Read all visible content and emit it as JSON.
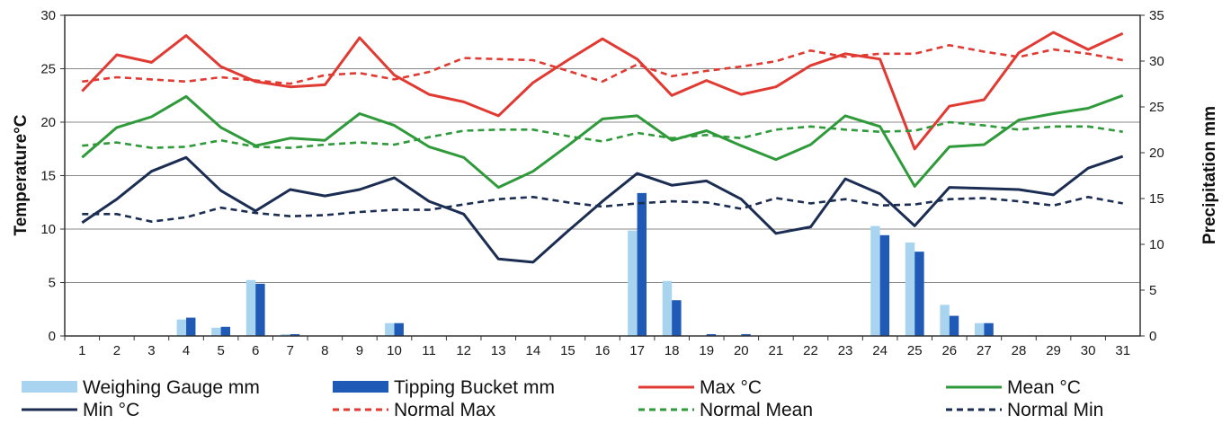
{
  "chart_data": {
    "type": "bar+line",
    "title": "",
    "xlabel": "",
    "ylabel_left": "Temperature°C",
    "ylabel_right": "Precipitation mm",
    "x": [
      1,
      2,
      3,
      4,
      5,
      6,
      7,
      8,
      9,
      10,
      11,
      12,
      13,
      14,
      15,
      16,
      17,
      18,
      19,
      20,
      21,
      22,
      23,
      24,
      25,
      26,
      27,
      28,
      29,
      30,
      31
    ],
    "ylim_left": [
      0,
      30
    ],
    "yticks_left": [
      0,
      5,
      10,
      15,
      20,
      25,
      30
    ],
    "ylim_right": [
      0,
      35
    ],
    "yticks_right": [
      0,
      5,
      10,
      15,
      20,
      25,
      30,
      35
    ],
    "grid": true,
    "legend_position": "bottom",
    "bar_series": [
      {
        "name": "Weighing Gauge mm",
        "axis": "right",
        "color": "#a9d4ef",
        "values": [
          0,
          0,
          0,
          1.8,
          0.9,
          6.1,
          0.2,
          0,
          0,
          1.4,
          0,
          0,
          0,
          0,
          0,
          0,
          11.5,
          6.0,
          0,
          0,
          0,
          0,
          0,
          12.0,
          10.2,
          3.4,
          1.4,
          0,
          0,
          0,
          0
        ]
      },
      {
        "name": "Tipping Bucket mm",
        "axis": "right",
        "color": "#1f5bb6",
        "values": [
          0,
          0,
          0,
          2.0,
          1.0,
          5.7,
          0.2,
          0,
          0,
          1.4,
          0,
          0,
          0,
          0,
          0,
          0,
          15.6,
          3.9,
          0.2,
          0.2,
          0,
          0,
          0,
          11.0,
          9.2,
          2.2,
          1.4,
          0,
          0,
          0,
          0
        ]
      }
    ],
    "line_series": [
      {
        "name": "Max °C",
        "axis": "left",
        "color": "#e03a32",
        "dash": false,
        "values": [
          22.9,
          26.3,
          25.6,
          28.1,
          25.2,
          23.8,
          23.3,
          23.5,
          27.9,
          24.4,
          22.6,
          21.9,
          20.6,
          23.7,
          25.8,
          27.8,
          25.9,
          22.5,
          23.9,
          22.6,
          23.3,
          25.3,
          26.4,
          25.9,
          17.5,
          21.5,
          22.1,
          26.5,
          28.4,
          26.8,
          28.3
        ]
      },
      {
        "name": "Mean °C",
        "axis": "left",
        "color": "#2e9a3a",
        "dash": false,
        "values": [
          16.7,
          19.5,
          20.5,
          22.4,
          19.5,
          17.8,
          18.5,
          18.3,
          20.8,
          19.7,
          17.7,
          16.7,
          13.9,
          15.4,
          17.8,
          20.3,
          20.6,
          18.3,
          19.2,
          17.8,
          16.5,
          17.9,
          20.6,
          19.6,
          14.0,
          17.7,
          17.9,
          20.2,
          20.8,
          21.3,
          22.5
        ]
      },
      {
        "name": "Min °C",
        "axis": "left",
        "color": "#1b2d52",
        "dash": false,
        "values": [
          10.6,
          12.8,
          15.4,
          16.7,
          13.6,
          11.7,
          13.7,
          13.1,
          13.7,
          14.8,
          12.6,
          11.4,
          7.2,
          6.9,
          9.8,
          12.6,
          15.2,
          14.1,
          14.5,
          12.8,
          9.6,
          10.2,
          14.7,
          13.3,
          10.3,
          13.9,
          13.8,
          13.7,
          13.2,
          15.7,
          16.8
        ]
      },
      {
        "name": "Normal Max",
        "axis": "left",
        "color": "#e03a32",
        "dash": true,
        "values": [
          23.8,
          24.2,
          24.0,
          23.8,
          24.2,
          23.9,
          23.6,
          24.4,
          24.6,
          24.0,
          24.7,
          26.0,
          25.9,
          25.8,
          24.8,
          23.8,
          25.4,
          24.3,
          24.8,
          25.2,
          25.7,
          26.7,
          26.1,
          26.4,
          26.4,
          27.2,
          26.6,
          26.1,
          26.8,
          26.4,
          25.8
        ]
      },
      {
        "name": "Normal Mean",
        "axis": "left",
        "color": "#2e9a3a",
        "dash": true,
        "values": [
          17.8,
          18.1,
          17.6,
          17.7,
          18.3,
          17.7,
          17.6,
          17.9,
          18.1,
          17.9,
          18.6,
          19.2,
          19.3,
          19.3,
          18.7,
          18.2,
          19.0,
          18.5,
          18.8,
          18.5,
          19.3,
          19.6,
          19.3,
          19.1,
          19.2,
          20.0,
          19.7,
          19.3,
          19.6,
          19.6,
          19.1
        ]
      },
      {
        "name": "Normal Min",
        "axis": "left",
        "color": "#1b2d52",
        "dash": true,
        "values": [
          11.4,
          11.4,
          10.7,
          11.1,
          12.0,
          11.5,
          11.2,
          11.3,
          11.6,
          11.8,
          11.8,
          12.3,
          12.8,
          13.0,
          12.5,
          12.1,
          12.4,
          12.6,
          12.5,
          11.9,
          12.9,
          12.4,
          12.8,
          12.2,
          12.3,
          12.8,
          12.9,
          12.6,
          12.2,
          13.0,
          12.4
        ]
      }
    ],
    "legend": [
      {
        "label": "Weighing Gauge mm",
        "kind": "bar",
        "color": "#a9d4ef",
        "dash": false
      },
      {
        "label": "Tipping Bucket mm",
        "kind": "bar",
        "color": "#1f5bb6",
        "dash": false
      },
      {
        "label": "Max °C",
        "kind": "line",
        "color": "#e03a32",
        "dash": false
      },
      {
        "label": "Mean °C",
        "kind": "line",
        "color": "#2e9a3a",
        "dash": false
      },
      {
        "label": "Min °C",
        "kind": "line",
        "color": "#1b2d52",
        "dash": false
      },
      {
        "label": "Normal Max",
        "kind": "line",
        "color": "#e03a32",
        "dash": true
      },
      {
        "label": "Normal Mean",
        "kind": "line",
        "color": "#2e9a3a",
        "dash": true
      },
      {
        "label": "Normal Min",
        "kind": "line",
        "color": "#1b2d52",
        "dash": true
      }
    ]
  }
}
